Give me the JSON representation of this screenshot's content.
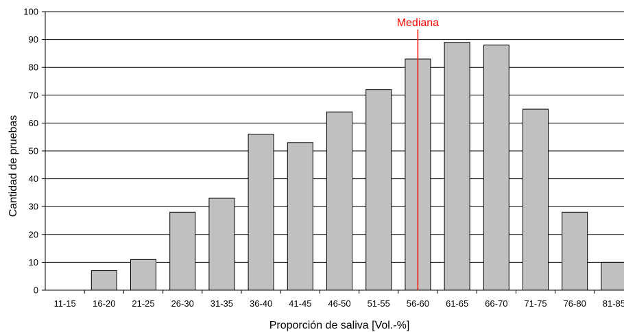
{
  "chart_data": {
    "type": "bar",
    "title": "",
    "xlabel": "Proporción de saliva [Vol.-%]",
    "ylabel": "Cantidad de pruebas",
    "ylim": [
      0,
      100
    ],
    "yticks": [
      0,
      10,
      20,
      30,
      40,
      50,
      60,
      70,
      80,
      90,
      100
    ],
    "grid": true,
    "categories": [
      "11-15",
      "16-20",
      "21-25",
      "26-30",
      "31-35",
      "36-40",
      "41-45",
      "46-50",
      "51-55",
      "56-60",
      "61-65",
      "66-70",
      "71-75",
      "76-80",
      "81-85"
    ],
    "values": [
      0,
      7,
      11,
      28,
      33,
      56,
      53,
      64,
      72,
      83,
      89,
      88,
      65,
      28,
      10
    ],
    "bar_color": "#c0c0c0",
    "annotation": {
      "label": "Mediana",
      "category": "56-60",
      "color": "#ff0000"
    }
  }
}
